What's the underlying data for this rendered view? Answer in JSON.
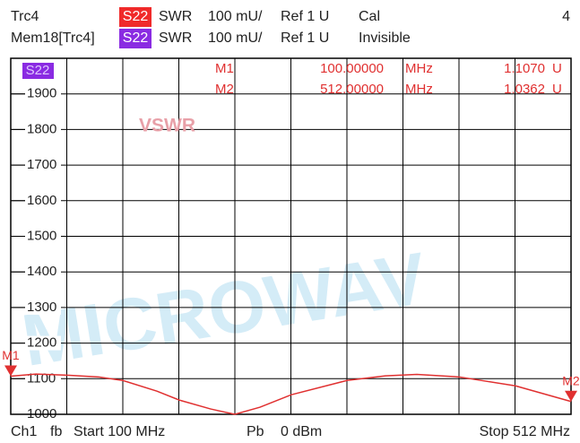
{
  "header": {
    "trace": "Trc4",
    "trace_param": "S22",
    "trace_format": "SWR",
    "trace_scale": "100 mU/",
    "trace_ref": "Ref 1 U",
    "trace_status": "Cal",
    "channel_count": "4",
    "memory": "Mem18[Trc4]",
    "memory_param": "S22",
    "memory_format": "SWR",
    "memory_scale": "100 mU/",
    "memory_ref": "Ref 1 U",
    "memory_status": "Invisible"
  },
  "chart_data": {
    "type": "line",
    "annotation": "VSWR",
    "watermark": "MICROWAV",
    "x": [
      100,
      118.5,
      141.5,
      164.6,
      182.4,
      207.5,
      223.9,
      247,
      264.8,
      283.3,
      306.3,
      347.2,
      375.5,
      398.6,
      429.6,
      471.1,
      512
    ],
    "series": [
      {
        "name": "S22",
        "color": "#e03030",
        "values": [
          1107,
          1113,
          1110,
          1105,
          1095,
          1065,
          1040,
          1015,
          1000,
          1020,
          1055,
          1095,
          1108,
          1112,
          1105,
          1080,
          1036
        ]
      }
    ],
    "xlim": [
      100,
      512
    ],
    "ylim": [
      1000,
      2000
    ],
    "yticks": [
      1000,
      1100,
      1200,
      1300,
      1400,
      1500,
      1600,
      1700,
      1800,
      1900
    ],
    "grid": true,
    "x_divisions": 10,
    "markers": [
      {
        "label": "M1",
        "frequency": "100.00000",
        "frequency_unit": "MHz",
        "value": "1.1070",
        "value_unit": "U"
      },
      {
        "label": "M2",
        "frequency": "512.00000",
        "frequency_unit": "MHz",
        "value": "1.0362",
        "value_unit": "U"
      }
    ]
  },
  "footer": {
    "channel": "Ch1",
    "mode": "fb",
    "start": "Start 100 MHz",
    "power_label": "Pb",
    "power": "0 dBm",
    "stop": "Stop 512 MHz"
  }
}
